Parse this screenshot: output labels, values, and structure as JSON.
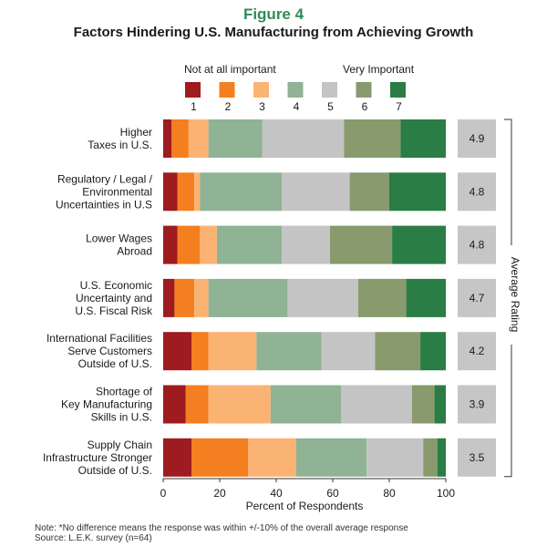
{
  "figure_label": "Figure 4",
  "chart_data": {
    "type": "bar",
    "stacked": true,
    "orientation": "horizontal",
    "title": "Factors Hindering U.S. Manufacturing from Achieving Growth",
    "xlabel": "Percent of Respondents",
    "xlim": [
      0,
      100
    ],
    "xticks": [
      0,
      20,
      40,
      60,
      80,
      100
    ],
    "side_label": "Average Rating",
    "legend": {
      "low_label": "Not at all important",
      "high_label": "Very Important",
      "placement": "top"
    },
    "categories": [
      [
        "Higher",
        "Taxes in U.S."
      ],
      [
        "Regulatory / Legal /",
        "Environmental",
        "Uncertainties in U.S"
      ],
      [
        "Lower Wages",
        "Abroad"
      ],
      [
        "U.S. Economic",
        "Uncertainty and",
        "U.S. Fiscal Risk"
      ],
      [
        "International Facilities",
        "Serve Customers",
        "Outside of U.S."
      ],
      [
        "Shortage of",
        "Key Manufacturing",
        "Skills in U.S."
      ],
      [
        "Supply Chain",
        "Infrastructure Stronger",
        "Outside of U.S."
      ]
    ],
    "series": [
      {
        "name": "1",
        "color": "#9e1b20",
        "values": [
          3,
          5,
          5,
          4,
          10,
          8,
          10
        ]
      },
      {
        "name": "2",
        "color": "#f47f20",
        "values": [
          6,
          6,
          8,
          7,
          6,
          8,
          20
        ]
      },
      {
        "name": "3",
        "color": "#fbb373",
        "values": [
          7,
          2,
          6,
          5,
          17,
          22,
          17
        ]
      },
      {
        "name": "4",
        "color": "#8fb394",
        "values": [
          19,
          29,
          23,
          28,
          23,
          25,
          25
        ]
      },
      {
        "name": "5",
        "color": "#c4c4c4",
        "values": [
          29,
          24,
          17,
          25,
          19,
          25,
          20
        ]
      },
      {
        "name": "6",
        "color": "#889a6e",
        "values": [
          20,
          14,
          22,
          17,
          16,
          8,
          5
        ]
      },
      {
        "name": "7",
        "color": "#2a7d44",
        "values": [
          16,
          20,
          19,
          14,
          9,
          4,
          3
        ]
      }
    ],
    "average_ratings": [
      "4.9",
      "4.8",
      "4.8",
      "4.7",
      "4.2",
      "3.9",
      "3.5"
    ]
  },
  "note": "Note: *No difference means the response was within +/-10% of the overall average response",
  "source": "Source: L.E.K. survey (n=64)"
}
